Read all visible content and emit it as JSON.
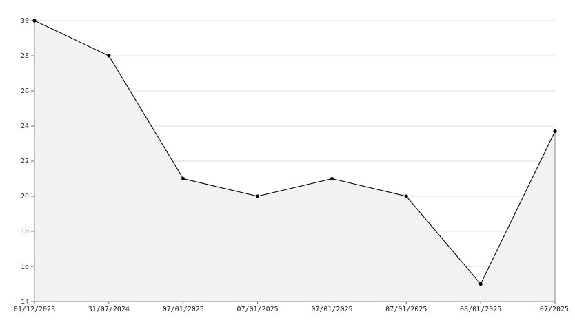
{
  "chart_data": {
    "type": "line",
    "categories": [
      "01/12/2023",
      "31/07/2024",
      "07/01/2025",
      "07/01/2025",
      "07/01/2025",
      "07/01/2025",
      "08/01/2025",
      "07/2025"
    ],
    "values": [
      30,
      28,
      21,
      20,
      21,
      20,
      15,
      23.7
    ],
    "color": "#000000",
    "area_color": "#f2f2f2",
    "ylim": [
      14,
      30
    ],
    "yticks": [
      14,
      16,
      18,
      20,
      22,
      24,
      26,
      28,
      30
    ],
    "grid": true
  }
}
